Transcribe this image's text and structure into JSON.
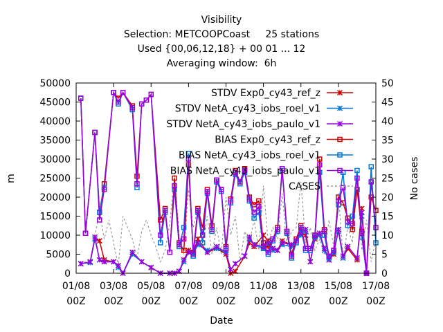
{
  "chart_data": {
    "type": "line",
    "title_lines": [
      "Visibility",
      "Selection: METCOOPCoast     25 stations",
      "Used {00,06,12,18} + 00 01 ... 12",
      "Averaging window:  6h"
    ],
    "xlabel": "Date",
    "ylabel": "m",
    "y2label": "No cases",
    "ylim": [
      0,
      50000
    ],
    "y2lim": [
      0,
      50
    ],
    "xlim": [
      0,
      16
    ],
    "yticks": [
      "0",
      "5000",
      "10000",
      "15000",
      "20000",
      "25000",
      "30000",
      "35000",
      "40000",
      "45000",
      "50000"
    ],
    "y2ticks": [
      "0",
      "5",
      "10",
      "15",
      "20",
      "25",
      "30",
      "35",
      "40",
      "45",
      "50"
    ],
    "xticks": [
      {
        "x": 0,
        "l1": "01/08",
        "l2": "00Z"
      },
      {
        "x": 2,
        "l1": "03/08",
        "l2": "00Z"
      },
      {
        "x": 4,
        "l1": "05/08",
        "l2": "00Z"
      },
      {
        "x": 6,
        "l1": "07/08",
        "l2": "00Z"
      },
      {
        "x": 8,
        "l1": "09/08",
        "l2": "00Z"
      },
      {
        "x": 10,
        "l1": "11/08",
        "l2": "00Z"
      },
      {
        "x": 12,
        "l1": "13/08",
        "l2": "00Z"
      },
      {
        "x": 14,
        "l1": "15/08",
        "l2": "00Z"
      },
      {
        "x": 16,
        "l1": "17/08",
        "l2": "00Z"
      }
    ],
    "legend_position": "top-right",
    "series": [
      {
        "name": "STDV Exp0_cy43_ref_z",
        "color": "#cc0000",
        "marker": "x",
        "x": [
          0.25,
          0.75,
          1.0,
          1.25,
          1.5,
          2.0,
          2.25,
          2.5,
          3.0,
          3.5,
          4.0,
          4.5,
          5.0,
          5.25,
          5.5,
          5.75,
          6.0,
          6.25,
          6.5,
          7.0,
          7.5,
          8.0,
          8.25,
          8.5,
          9.0,
          9.25,
          9.5,
          10.0,
          10.25,
          10.5,
          10.75,
          11.0,
          11.5,
          12.0,
          12.25,
          12.5,
          12.75,
          13.0,
          13.25,
          13.5,
          13.75,
          14.0,
          14.25,
          14.5,
          15.0,
          15.25,
          15.5
        ],
        "y": [
          2500,
          3000,
          9000,
          8500,
          3500,
          3000,
          2000,
          0,
          5500,
          3000,
          1500,
          0,
          0,
          0,
          500,
          3500,
          6000,
          5500,
          9000,
          5500,
          6500,
          5000,
          0,
          500,
          4500,
          8000,
          7000,
          10000,
          8500,
          6500,
          6000,
          8500,
          7500,
          10500,
          10000,
          3000,
          9000,
          10500,
          6500,
          3500,
          5000,
          11500,
          4000,
          6500,
          3500,
          17000,
          0
        ]
      },
      {
        "name": "STDV NetA_cy43_iobs_roel_v1",
        "color": "#0077dd",
        "marker": "x",
        "x": [
          0.25,
          0.75,
          1.0,
          1.25,
          1.5,
          2.0,
          2.25,
          2.5,
          3.0,
          3.5,
          4.0,
          4.5,
          5.0,
          5.25,
          5.5,
          5.75,
          6.0,
          6.25,
          6.5,
          7.0,
          7.5,
          8.0,
          8.25,
          8.5,
          9.0,
          9.25,
          9.5,
          10.0,
          10.25,
          10.5,
          10.75,
          11.0,
          11.5,
          12.0,
          12.25,
          12.5,
          12.75,
          13.0,
          13.25,
          13.5,
          13.75,
          14.0,
          14.25,
          14.5,
          15.0,
          15.25,
          15.5
        ],
        "y": [
          2500,
          2800,
          9000,
          3500,
          3000,
          3000,
          1500,
          0,
          5000,
          3000,
          1500,
          0,
          0,
          0,
          500,
          3000,
          5500,
          5000,
          7500,
          6000,
          6500,
          5500,
          1000,
          2500,
          4500,
          9000,
          7500,
          6500,
          7500,
          6000,
          6000,
          7500,
          7000,
          10000,
          11000,
          3000,
          9500,
          10000,
          6000,
          3500,
          5500,
          11000,
          4000,
          7000,
          4000,
          15000,
          0
        ]
      },
      {
        "name": "STDV NetA_cy43_iobs_paulo_v1",
        "color": "#9900dd",
        "marker": "x",
        "x": [
          0.25,
          0.75,
          1.0,
          1.25,
          1.5,
          2.0,
          2.25,
          2.5,
          3.0,
          3.5,
          4.0,
          4.5,
          5.0,
          5.25,
          5.5,
          5.75,
          6.0,
          6.25,
          6.5,
          7.0,
          7.5,
          8.0,
          8.25,
          8.5,
          9.0,
          9.25,
          9.5,
          10.0,
          10.25,
          10.5,
          10.75,
          11.0,
          11.5,
          12.0,
          12.25,
          12.5,
          12.75,
          13.0,
          13.25,
          13.5,
          13.75,
          14.0,
          14.25,
          14.5,
          15.0,
          15.25,
          15.5
        ],
        "y": [
          2500,
          3000,
          9500,
          3500,
          3000,
          3000,
          2000,
          0,
          5500,
          3000,
          1500,
          0,
          0,
          0,
          500,
          3500,
          5500,
          5500,
          8000,
          5500,
          7000,
          5500,
          1000,
          2500,
          4500,
          9500,
          7500,
          7000,
          8000,
          6500,
          6000,
          8000,
          7500,
          10500,
          11500,
          3000,
          9500,
          10500,
          6500,
          3500,
          5500,
          11500,
          4500,
          7000,
          4000,
          16000,
          0
        ]
      },
      {
        "name": "BIAS Exp0_cy43_ref_z",
        "color": "#cc0000",
        "marker": "square",
        "x": [
          0.25,
          0.5,
          1.0,
          1.25,
          1.5,
          2.0,
          2.25,
          2.5,
          3.0,
          3.25,
          3.5,
          3.75,
          4.0,
          4.5,
          4.75,
          5.0,
          5.25,
          5.5,
          5.75,
          6.0,
          6.25,
          6.5,
          6.75,
          7.0,
          7.25,
          7.5,
          7.75,
          8.0,
          8.25,
          8.5,
          8.75,
          9.0,
          9.25,
          9.5,
          9.75,
          10.0,
          10.25,
          10.5,
          10.75,
          11.0,
          11.25,
          11.5,
          11.75,
          12.0,
          12.25,
          12.5,
          12.75,
          13.0,
          13.25,
          13.5,
          13.75,
          14.0,
          14.25,
          14.5,
          14.75,
          15.0,
          15.25,
          15.5,
          15.75,
          16.0
        ],
        "y": [
          46000,
          10500,
          37000,
          16000,
          23500,
          47500,
          46000,
          47500,
          44000,
          25500,
          44500,
          45500,
          47000,
          14000,
          17000,
          5500,
          25000,
          8000,
          6000,
          28500,
          5500,
          17000,
          12000,
          22000,
          12500,
          24500,
          22000,
          7000,
          19500,
          27000,
          24000,
          27500,
          20000,
          18000,
          19000,
          8000,
          6500,
          9000,
          12000,
          27500,
          11000,
          5000,
          9000,
          12500,
          6500,
          6500,
          10000,
          30000,
          11500,
          4500,
          6000,
          20000,
          18500,
          14500,
          11500,
          22000,
          11000,
          0,
          20000,
          16500
        ]
      },
      {
        "name": "BIAS NetA_cy43_iobs_roel_v1",
        "color": "#0077dd",
        "marker": "square",
        "x": [
          0.25,
          0.5,
          1.0,
          1.25,
          1.5,
          2.0,
          2.25,
          2.5,
          3.0,
          3.25,
          3.5,
          3.75,
          4.0,
          4.5,
          4.75,
          5.0,
          5.25,
          5.5,
          5.75,
          6.0,
          6.25,
          6.5,
          6.75,
          7.0,
          7.25,
          7.5,
          7.75,
          8.0,
          8.25,
          8.5,
          8.75,
          9.0,
          9.25,
          9.5,
          9.75,
          10.0,
          10.25,
          10.5,
          10.75,
          11.0,
          11.25,
          11.5,
          11.75,
          12.0,
          12.25,
          12.5,
          12.75,
          13.0,
          13.25,
          13.5,
          13.75,
          14.0,
          14.25,
          14.5,
          14.75,
          15.0,
          15.25,
          15.5,
          15.75,
          16.0
        ],
        "y": [
          46000,
          10500,
          37000,
          16000,
          22500,
          47500,
          44500,
          47500,
          43000,
          22500,
          44500,
          45500,
          47000,
          8000,
          16000,
          5500,
          22000,
          7000,
          12000,
          31500,
          4500,
          16000,
          8000,
          21000,
          11000,
          24000,
          21500,
          6000,
          18500,
          26000,
          23500,
          26500,
          19000,
          14500,
          16000,
          6500,
          5000,
          8500,
          11000,
          27000,
          10500,
          4000,
          8000,
          11500,
          6000,
          6000,
          9500,
          26500,
          10000,
          4000,
          5500,
          18000,
          26500,
          12500,
          15000,
          27000,
          9500,
          0,
          28000,
          8000
        ]
      },
      {
        "name": "BIAS NetA_cy43_iobs_paulo_v1",
        "color": "#9900dd",
        "marker": "square",
        "x": [
          0.25,
          0.5,
          1.0,
          1.25,
          1.5,
          2.0,
          2.25,
          2.5,
          3.0,
          3.25,
          3.5,
          3.75,
          4.0,
          4.5,
          4.75,
          5.0,
          5.25,
          5.5,
          5.75,
          6.0,
          6.25,
          6.5,
          6.75,
          7.0,
          7.25,
          7.5,
          7.75,
          8.0,
          8.25,
          8.5,
          8.75,
          9.0,
          9.25,
          9.5,
          9.75,
          10.0,
          10.25,
          10.5,
          10.75,
          11.0,
          11.25,
          11.5,
          11.75,
          12.0,
          12.25,
          12.5,
          12.75,
          13.0,
          13.25,
          13.5,
          13.75,
          14.0,
          14.25,
          14.5,
          14.75,
          15.0,
          15.25,
          15.5,
          15.75,
          16.0
        ],
        "y": [
          46000,
          10500,
          37000,
          14000,
          22000,
          47500,
          45000,
          47500,
          43500,
          23500,
          44500,
          45500,
          47000,
          10000,
          16500,
          5500,
          23000,
          7500,
          9000,
          30000,
          5000,
          16500,
          10000,
          21500,
          11500,
          24500,
          22000,
          6500,
          19000,
          26500,
          24000,
          27000,
          19500,
          16000,
          17500,
          7000,
          5500,
          9000,
          11500,
          27500,
          11000,
          4500,
          8500,
          12000,
          6500,
          6500,
          10000,
          28500,
          11000,
          4500,
          6000,
          19000,
          22500,
          13500,
          13000,
          25000,
          10500,
          0,
          24000,
          12000
        ]
      },
      {
        "name": "CASES",
        "color": "#999999",
        "marker": "none",
        "axis": "y2",
        "x": [
          0.25,
          0.5,
          0.75,
          1.0,
          1.25,
          1.5,
          1.75,
          2.0,
          2.25,
          2.5,
          2.75,
          3.0,
          3.25,
          3.5,
          3.75,
          4.0,
          4.25,
          4.5,
          4.75,
          5.0,
          5.25,
          5.5,
          5.75,
          6.0,
          6.25,
          6.5,
          6.75,
          7.0,
          7.25,
          7.5,
          7.75,
          8.0,
          8.25,
          8.5,
          8.75,
          9.0,
          9.25,
          9.5,
          9.75,
          10.0,
          10.25,
          10.5,
          10.75,
          11.0,
          11.25,
          11.5,
          11.75,
          12.0,
          12.25,
          12.5,
          12.75,
          13.0,
          13.25,
          13.5,
          13.75,
          14.0,
          14.25,
          14.5,
          14.75,
          15.0,
          15.25,
          15.5,
          15.75,
          16.0
        ],
        "y": [
          2,
          3,
          2,
          10,
          16,
          9,
          14,
          8,
          2,
          15,
          12,
          9,
          4,
          11,
          14,
          10,
          7,
          3,
          6,
          13,
          26,
          10,
          5,
          22,
          12,
          17,
          7,
          15,
          5,
          12,
          5,
          20,
          10,
          15,
          3,
          11,
          8,
          14,
          6,
          23,
          8,
          12,
          9,
          21,
          7,
          11,
          12,
          24,
          8,
          12,
          6,
          9,
          5,
          14,
          7,
          21,
          4,
          12,
          8,
          26,
          6,
          14,
          3,
          9
        ]
      }
    ]
  }
}
